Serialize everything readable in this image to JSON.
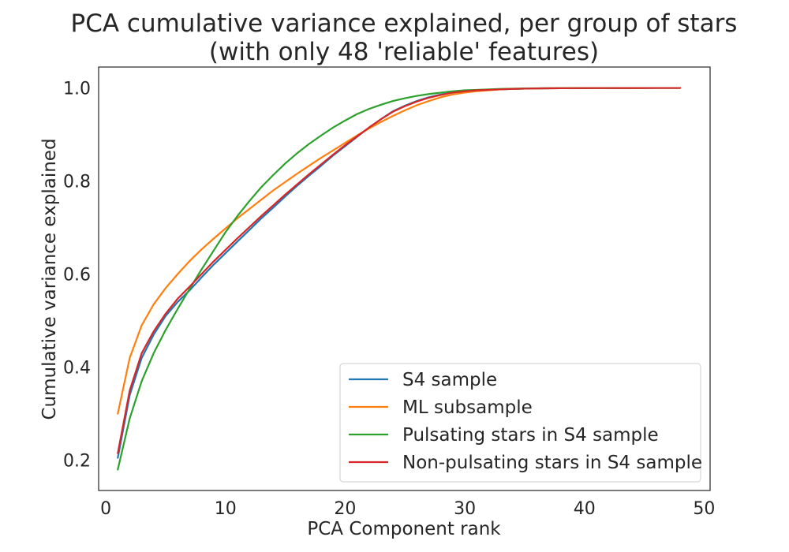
{
  "chart_data": {
    "type": "line",
    "title": [
      "PCA cumulative variance explained, per group of stars",
      "(with only 48 'reliable' features)"
    ],
    "xlabel": "PCA Component rank",
    "ylabel": "Cumulative variance explained",
    "xlim": [
      -0.6,
      50.5
    ],
    "ylim": [
      0.135,
      1.045
    ],
    "xticks": [
      0,
      10,
      20,
      30,
      40,
      50
    ],
    "xtick_labels": [
      "0",
      "10",
      "20",
      "30",
      "40",
      "50"
    ],
    "yticks": [
      0.2,
      0.4,
      0.6,
      0.8,
      1.0
    ],
    "ytick_labels": [
      "0.2",
      "0.4",
      "0.6",
      "0.8",
      "1.0"
    ],
    "grid": false,
    "legend_position": "lower-right",
    "x": [
      1,
      2,
      3,
      4,
      5,
      6,
      7,
      8,
      9,
      10,
      11,
      12,
      13,
      14,
      15,
      16,
      17,
      18,
      19,
      20,
      21,
      22,
      23,
      24,
      25,
      26,
      27,
      28,
      29,
      30,
      31,
      32,
      33,
      34,
      35,
      36,
      37,
      38,
      39,
      40,
      41,
      42,
      43,
      44,
      45,
      46,
      47,
      48
    ],
    "series": [
      {
        "name": "S4 sample",
        "color": "#1f77b4",
        "values": [
          0.205,
          0.34,
          0.42,
          0.47,
          0.51,
          0.54,
          0.565,
          0.593,
          0.62,
          0.645,
          0.67,
          0.695,
          0.72,
          0.743,
          0.767,
          0.79,
          0.812,
          0.833,
          0.855,
          0.875,
          0.895,
          0.915,
          0.933,
          0.95,
          0.962,
          0.972,
          0.98,
          0.986,
          0.99,
          0.993,
          0.995,
          0.996,
          0.997,
          0.998,
          0.9985,
          0.999,
          0.9993,
          0.9995,
          0.9996,
          0.9997,
          0.9998,
          0.9998,
          0.9999,
          0.9999,
          0.9999,
          1.0,
          1.0,
          1.0
        ]
      },
      {
        "name": "ML subsample",
        "color": "#ff7f0e",
        "values": [
          0.3,
          0.42,
          0.49,
          0.535,
          0.57,
          0.6,
          0.628,
          0.653,
          0.676,
          0.698,
          0.72,
          0.74,
          0.76,
          0.78,
          0.798,
          0.816,
          0.833,
          0.85,
          0.866,
          0.882,
          0.898,
          0.913,
          0.927,
          0.94,
          0.952,
          0.963,
          0.972,
          0.98,
          0.986,
          0.99,
          0.993,
          0.995,
          0.997,
          0.998,
          0.9985,
          0.999,
          0.9993,
          0.9995,
          0.9997,
          0.9998,
          0.9998,
          0.9999,
          0.9999,
          0.9999,
          1.0,
          1.0,
          1.0,
          1.0
        ]
      },
      {
        "name": "Pulsating stars in S4 sample",
        "color": "#2ca02c",
        "values": [
          0.18,
          0.29,
          0.37,
          0.43,
          0.48,
          0.525,
          0.568,
          0.61,
          0.65,
          0.69,
          0.725,
          0.757,
          0.787,
          0.813,
          0.838,
          0.86,
          0.88,
          0.898,
          0.915,
          0.93,
          0.944,
          0.955,
          0.964,
          0.972,
          0.978,
          0.983,
          0.987,
          0.99,
          0.993,
          0.995,
          0.996,
          0.997,
          0.998,
          0.9985,
          0.999,
          0.9993,
          0.9995,
          0.9996,
          0.9997,
          0.9998,
          0.9998,
          0.9999,
          0.9999,
          0.9999,
          1.0,
          1.0,
          1.0,
          1.0
        ]
      },
      {
        "name": "Non-pulsating stars in S4 sample",
        "color": "#d62728",
        "values": [
          0.215,
          0.35,
          0.43,
          0.477,
          0.515,
          0.547,
          0.573,
          0.6,
          0.627,
          0.652,
          0.677,
          0.701,
          0.725,
          0.748,
          0.771,
          0.793,
          0.815,
          0.836,
          0.857,
          0.877,
          0.896,
          0.915,
          0.933,
          0.949,
          0.961,
          0.971,
          0.979,
          0.985,
          0.99,
          0.993,
          0.995,
          0.996,
          0.997,
          0.998,
          0.9985,
          0.999,
          0.9993,
          0.9995,
          0.9996,
          0.9997,
          0.9998,
          0.9998,
          0.9999,
          0.9999,
          0.9999,
          1.0,
          1.0,
          1.0
        ]
      }
    ]
  }
}
